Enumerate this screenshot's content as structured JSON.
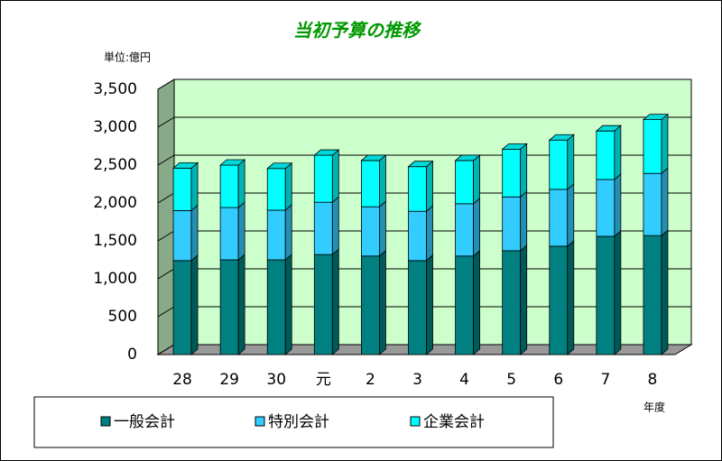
{
  "chart_data": {
    "type": "bar3d_stacked",
    "title": "当初予算の推移",
    "unit_label": "単位:億円",
    "x_label": "年度",
    "categories": [
      "28",
      "29",
      "30",
      "元",
      "2",
      "3",
      "4",
      "5",
      "6",
      "7",
      "8"
    ],
    "series": [
      {
        "name": "一般会計",
        "color": "#008080",
        "values": [
          1240,
          1250,
          1250,
          1320,
          1300,
          1240,
          1300,
          1370,
          1430,
          1560,
          1570
        ]
      },
      {
        "name": "特別会計",
        "color": "#33ccff",
        "values": [
          660,
          690,
          655,
          690,
          650,
          650,
          690,
          710,
          750,
          750,
          820
        ]
      },
      {
        "name": "企業会計",
        "color": "#00ffff",
        "values": [
          560,
          560,
          550,
          620,
          610,
          590,
          570,
          630,
          650,
          640,
          710
        ]
      }
    ],
    "ylim": [
      0,
      3500
    ],
    "yticks": [
      0,
      500,
      {
        "value": 1000,
        "label": "1,000"
      },
      {
        "value": 1500,
        "label": "1,500"
      },
      {
        "value": 2000,
        "label": "2,000"
      },
      {
        "value": 2500,
        "label": "2,500"
      },
      {
        "value": 3000,
        "label": "3,000"
      },
      {
        "value": 3500,
        "label": "3,500"
      }
    ],
    "grid": true
  }
}
